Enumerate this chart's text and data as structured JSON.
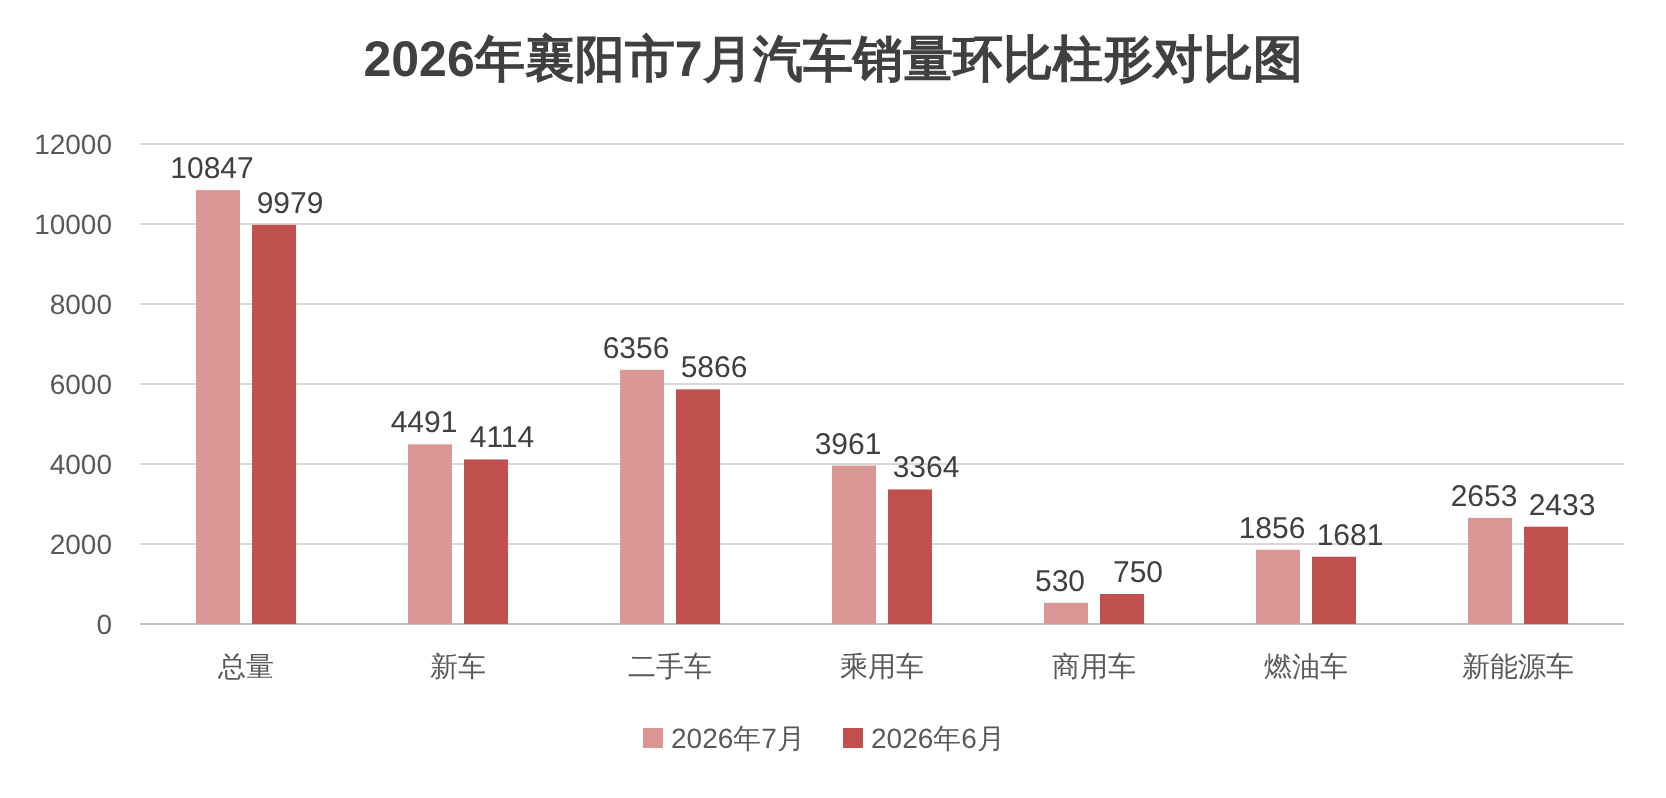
{
  "chart_data": {
    "type": "bar",
    "title": "2026年襄阳市7月汽车销量环比柱形对比图",
    "categories": [
      "总量",
      "新车",
      "二手车",
      "乘用车",
      "商用车",
      "燃油车",
      "新能源车"
    ],
    "series": [
      {
        "name": "2026年7月",
        "color": "#d99694",
        "values": [
          10847,
          4491,
          6356,
          3961,
          530,
          1856,
          2653
        ]
      },
      {
        "name": "2026年6月",
        "color": "#c0504d",
        "values": [
          9979,
          4114,
          5866,
          3364,
          750,
          1681,
          2433
        ]
      }
    ],
    "ylim": [
      0,
      12000
    ],
    "yticks": [
      0,
      2000,
      4000,
      6000,
      8000,
      10000,
      12000
    ],
    "grid": "y",
    "legend": "bottom",
    "data_labels": true
  }
}
